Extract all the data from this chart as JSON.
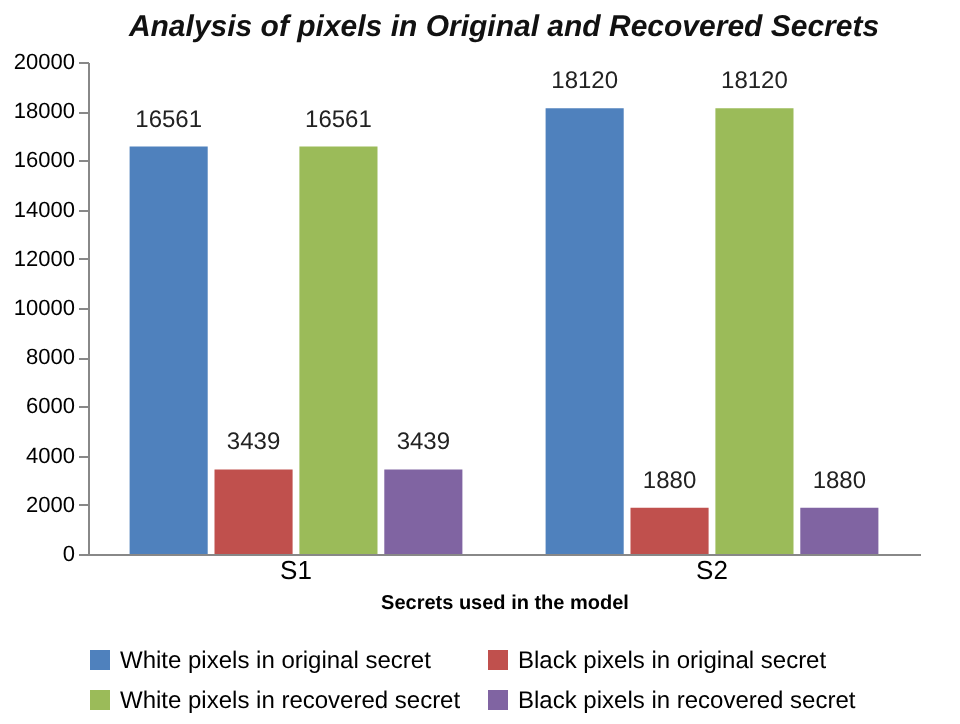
{
  "chart_data": {
    "type": "bar",
    "title": "Analysis of pixels in Original and Recovered Secrets",
    "xlabel": "Secrets used in the model",
    "categories": [
      "S1",
      "S2"
    ],
    "series": [
      {
        "name": "White pixels in original secret",
        "color": "#4f81bd",
        "values": [
          16561,
          18120
        ]
      },
      {
        "name": "Black pixels in original secret",
        "color": "#c0504d",
        "values": [
          3439,
          1880
        ]
      },
      {
        "name": "White pixels in recovered secret",
        "color": "#9bbb59",
        "values": [
          16561,
          18120
        ]
      },
      {
        "name": "Black pixels in recovered secret",
        "color": "#8064a2",
        "values": [
          3439,
          1880
        ]
      }
    ],
    "ylim": [
      0,
      20000
    ],
    "yticks": [
      0,
      2000,
      4000,
      6000,
      8000,
      10000,
      12000,
      14000,
      16000,
      18000,
      20000
    ],
    "grid": false,
    "legend": "bottom",
    "data_labels": true
  }
}
